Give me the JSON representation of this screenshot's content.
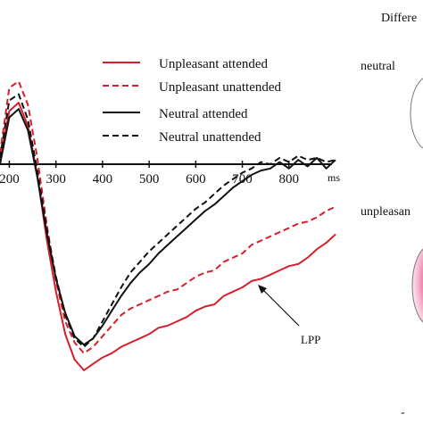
{
  "chart_data": {
    "type": "line",
    "xlabel": "ms",
    "ylabel": "",
    "x_ticks": [
      200,
      300,
      400,
      500,
      600,
      700,
      800
    ],
    "xlim": [
      180,
      900
    ],
    "ylim": [
      -10,
      5
    ],
    "legend_position": "top-center",
    "annotation": "LPP",
    "series": [
      {
        "name": "Unpleasant attended",
        "color": "#d4202c",
        "dash": "solid",
        "x": [
          180,
          200,
          220,
          240,
          260,
          280,
          300,
          320,
          340,
          360,
          380,
          400,
          420,
          440,
          460,
          480,
          500,
          520,
          540,
          560,
          580,
          600,
          620,
          640,
          660,
          680,
          700,
          720,
          740,
          760,
          780,
          800,
          820,
          840,
          860,
          880,
          900
        ],
        "y": [
          0.2,
          2.5,
          2.9,
          1.8,
          -0.5,
          -3.5,
          -6.0,
          -8.0,
          -9.2,
          -9.7,
          -9.4,
          -9.1,
          -8.9,
          -8.6,
          -8.4,
          -8.2,
          -8.0,
          -7.7,
          -7.6,
          -7.4,
          -7.2,
          -6.9,
          -6.7,
          -6.6,
          -6.2,
          -6.0,
          -5.8,
          -5.5,
          -5.4,
          -5.2,
          -5.0,
          -4.8,
          -4.7,
          -4.4,
          -4.0,
          -3.7,
          -3.3
        ]
      },
      {
        "name": "Unpleasant unattended",
        "color": "#d4202c",
        "dash": "dashed",
        "x": [
          180,
          200,
          220,
          240,
          260,
          280,
          300,
          320,
          340,
          360,
          380,
          400,
          420,
          440,
          460,
          480,
          500,
          520,
          540,
          560,
          580,
          600,
          620,
          640,
          660,
          680,
          700,
          720,
          740,
          760,
          780,
          800,
          820,
          840,
          860,
          880,
          900
        ],
        "y": [
          0.5,
          3.6,
          3.9,
          2.8,
          0.3,
          -2.8,
          -5.5,
          -7.4,
          -8.4,
          -8.9,
          -8.6,
          -8.1,
          -7.6,
          -7.1,
          -6.8,
          -6.6,
          -6.4,
          -6.2,
          -6.0,
          -5.9,
          -5.6,
          -5.3,
          -5.1,
          -5.0,
          -4.6,
          -4.4,
          -4.2,
          -3.8,
          -3.6,
          -3.4,
          -3.2,
          -3.0,
          -2.8,
          -2.7,
          -2.5,
          -2.2,
          -2.0
        ]
      },
      {
        "name": "Neutral attended",
        "color": "#111111",
        "dash": "solid",
        "x": [
          180,
          200,
          220,
          240,
          260,
          280,
          300,
          320,
          340,
          360,
          380,
          400,
          420,
          440,
          460,
          480,
          500,
          520,
          540,
          560,
          580,
          600,
          620,
          640,
          660,
          680,
          700,
          720,
          740,
          760,
          780,
          800,
          820,
          840,
          860,
          880,
          900
        ],
        "y": [
          0.0,
          2.2,
          2.6,
          1.6,
          -0.6,
          -3.2,
          -5.4,
          -7.0,
          -8.1,
          -8.5,
          -8.2,
          -7.6,
          -6.9,
          -6.2,
          -5.6,
          -5.1,
          -4.7,
          -4.2,
          -3.8,
          -3.4,
          -3.0,
          -2.6,
          -2.2,
          -1.9,
          -1.5,
          -1.1,
          -0.8,
          -0.5,
          -0.3,
          -0.2,
          0.1,
          -0.2,
          0.2,
          -0.1,
          0.3,
          -0.2,
          0.2
        ]
      },
      {
        "name": "Neutral unattended",
        "color": "#111111",
        "dash": "dashed",
        "x": [
          180,
          200,
          220,
          240,
          260,
          280,
          300,
          320,
          340,
          360,
          380,
          400,
          420,
          440,
          460,
          480,
          500,
          520,
          540,
          560,
          580,
          600,
          620,
          640,
          660,
          680,
          700,
          720,
          740,
          760,
          780,
          800,
          820,
          840,
          860,
          880,
          900
        ],
        "y": [
          0.3,
          3.0,
          3.3,
          2.1,
          -0.3,
          -3.0,
          -5.3,
          -7.1,
          -8.2,
          -8.6,
          -8.2,
          -7.4,
          -6.6,
          -5.8,
          -5.1,
          -4.6,
          -4.1,
          -3.7,
          -3.3,
          -2.9,
          -2.5,
          -2.1,
          -1.8,
          -1.4,
          -1.0,
          -0.7,
          -0.4,
          -0.2,
          0.1,
          0.0,
          0.3,
          0.1,
          0.4,
          0.2,
          0.3,
          0.1,
          0.2
        ]
      }
    ]
  },
  "right_panel": {
    "header": "Differe",
    "label_top": "neutral",
    "label_bottom": "unpleasan",
    "footer_mark": "-"
  }
}
